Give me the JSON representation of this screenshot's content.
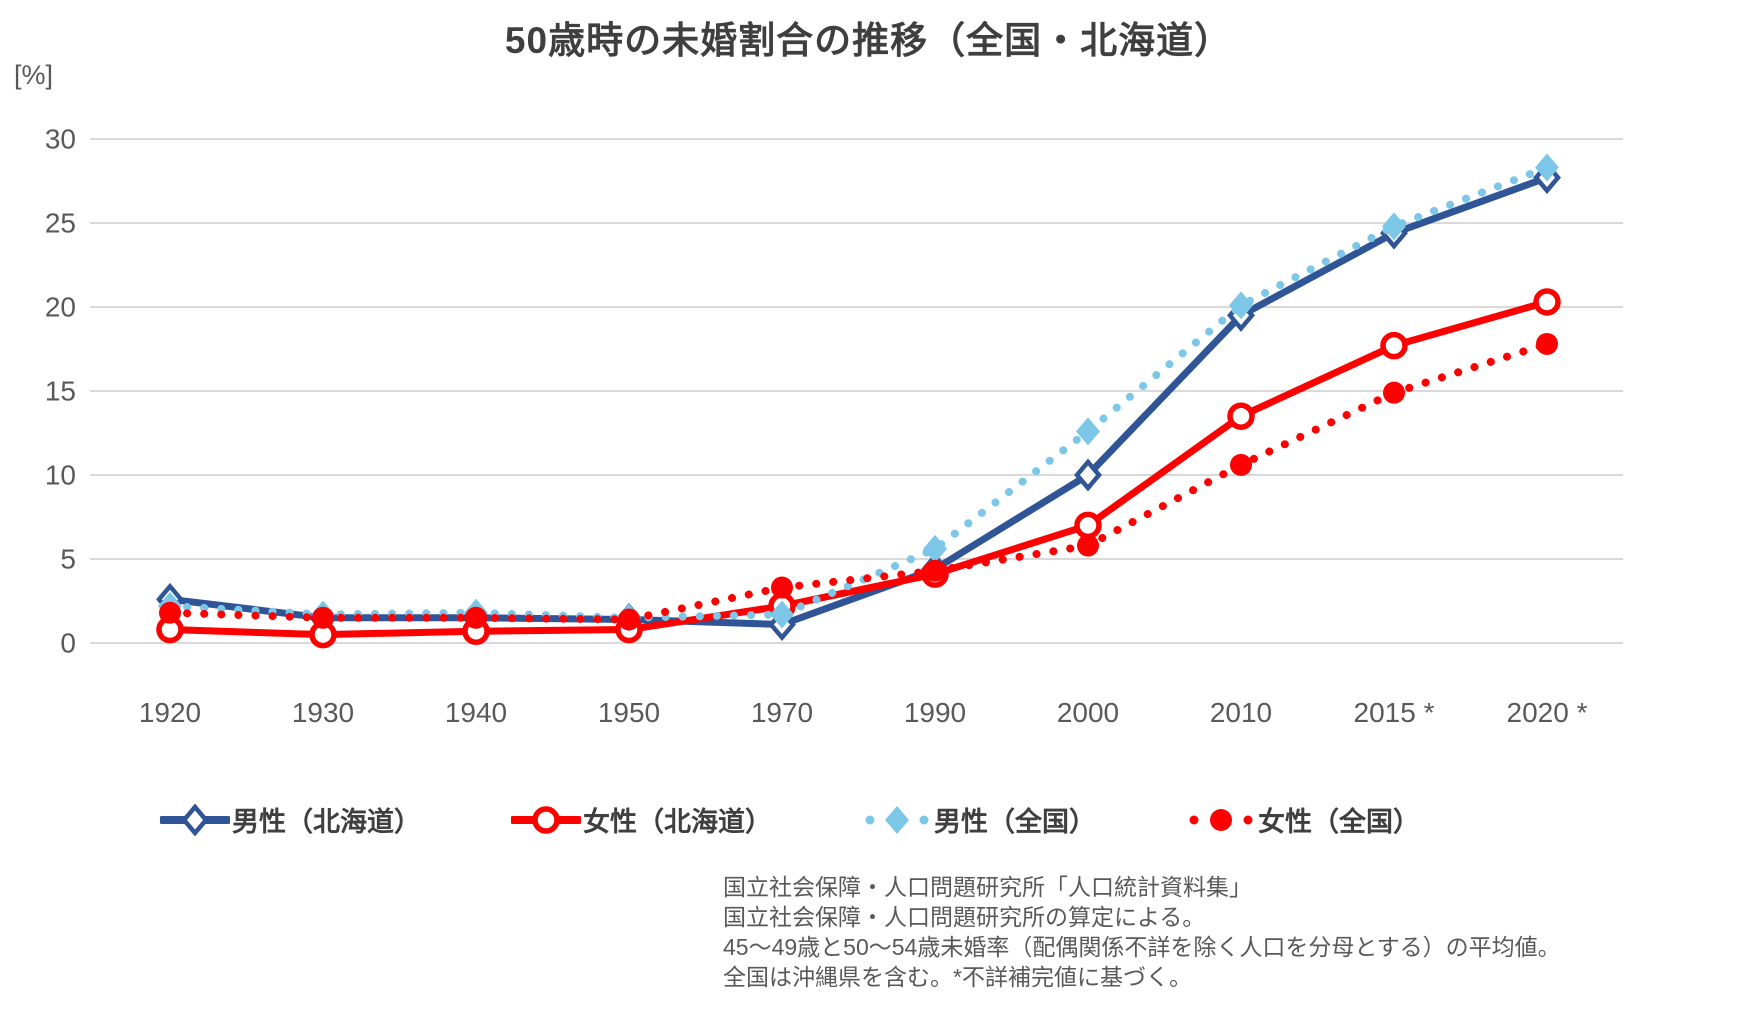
{
  "chart_data": {
    "type": "line",
    "title": "50歳時の未婚割合の推移（全国・北海道）",
    "y_unit_label": "[%]",
    "categories": [
      "1920",
      "1930",
      "1940",
      "1950",
      "1970",
      "1990",
      "2000",
      "2010",
      "2015 *",
      "2020 *"
    ],
    "ylim": [
      0,
      30
    ],
    "ytick_step": 5,
    "yticks": [
      "0",
      "5",
      "10",
      "15",
      "20",
      "25",
      "30"
    ],
    "grid": true,
    "legend_position": "bottom",
    "series": [
      {
        "key": "male-hokkaido",
        "name": "男性（北海道）",
        "color": "#2F5597",
        "line_style": "solid",
        "marker": "diamond-open",
        "values": [
          2.6,
          1.5,
          1.5,
          1.4,
          1.1,
          4.4,
          10.0,
          19.5,
          24.4,
          27.7
        ]
      },
      {
        "key": "female-hokkaido",
        "name": "女性（北海道）",
        "color": "#FF0000",
        "line_style": "solid",
        "marker": "circle-open",
        "values": [
          0.8,
          0.5,
          0.7,
          0.8,
          2.2,
          4.1,
          7.0,
          13.5,
          17.7,
          20.3
        ]
      },
      {
        "key": "male-national",
        "name": "男性（全国）",
        "color": "#7CC7E8",
        "line_style": "dotted",
        "marker": "diamond-filled",
        "values": [
          2.2,
          1.7,
          1.8,
          1.5,
          1.7,
          5.6,
          12.6,
          20.1,
          24.8,
          28.3
        ]
      },
      {
        "key": "female-national",
        "name": "女性（全国）",
        "color": "#FF0000",
        "line_style": "dotted",
        "marker": "circle-filled",
        "values": [
          1.8,
          1.5,
          1.5,
          1.4,
          3.3,
          4.3,
          5.8,
          10.6,
          14.9,
          17.8
        ]
      }
    ],
    "source_lines": [
      "国立社会保障・人口問題研究所「人口統計資料集」",
      "国立社会保障・人口問題研究所の算定による。",
      "45～49歳と50～54歳未婚率（配偶関係不詳を除く人口を分母とする）の平均値。",
      "全国は沖縄県を含む。*不詳補完値に基づく。"
    ],
    "colors": {
      "title_text": "#3F3F3F",
      "axis_text": "#595959",
      "gridline": "#D9D9D9",
      "source_text": "#595959",
      "dark_blue": "#2F5597",
      "light_blue": "#7CC7E8",
      "red": "#FF0000"
    }
  }
}
